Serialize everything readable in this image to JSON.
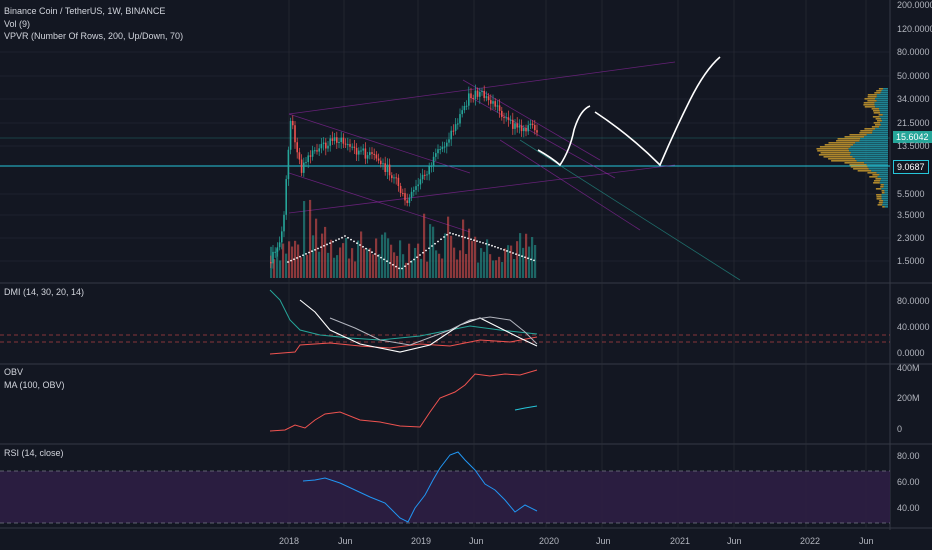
{
  "panes": {
    "main": {
      "title": "Binance Coin / TetherUS, 1W, BINANCE",
      "vol": "Vol (9)",
      "vpvr": "VPVR (Number Of Rows, 200, Up/Down, 70)",
      "price_ticks": [
        "200.0000",
        "120.0000",
        "80.0000",
        "50.0000",
        "34.0000",
        "21.5000",
        "13.5000",
        "9.0687",
        "5.5000",
        "3.5000",
        "2.3000",
        "1.5000"
      ],
      "last_price": "15.6042",
      "level_price": "9.0687"
    },
    "dmi": {
      "title": "DMI (14, 30, 20, 14)",
      "ticks": [
        "80.0000",
        "40.0000",
        "0.0000"
      ]
    },
    "obv": {
      "title": "OBV",
      "ma": "MA (100, OBV)",
      "ticks": [
        "400M",
        "200M",
        "0"
      ]
    },
    "rsi": {
      "title": "RSI (14, close)",
      "ticks": [
        "80.00",
        "60.00",
        "40.00"
      ]
    }
  },
  "time_axis": [
    "2018",
    "Jun",
    "2019",
    "Jun",
    "2020",
    "Jun",
    "2021",
    "Jun",
    "2022",
    "Jun"
  ],
  "colors": {
    "bg": "#131722",
    "up": "#26a69a",
    "down": "#ef5350",
    "grid": "#2a2e39",
    "channel": "#9c27b0",
    "level": "#26c6da",
    "rsi_band": "#2e1e44"
  }
}
